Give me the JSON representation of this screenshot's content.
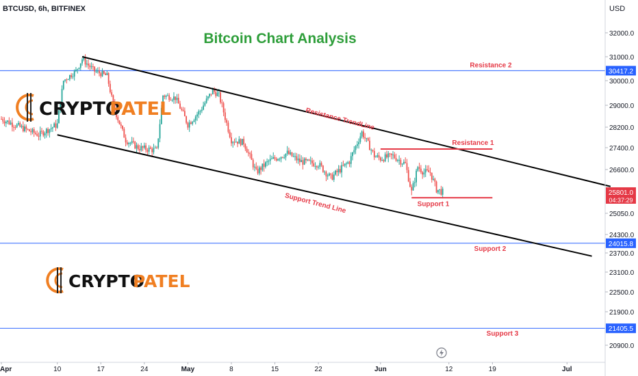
{
  "header": {
    "symbol_line": "BTCUSD, 6h, BITFINEX",
    "currency": "USD"
  },
  "colors": {
    "bullish": "#26a69a",
    "bearish": "#ef5350",
    "title": "#2e9e3a",
    "level_line": "#2962ff",
    "annotation": "#e53946",
    "trendline": "#000000",
    "price_tag": "#e53946",
    "level_tag": "#2962ff",
    "logo_orange": "#f07f22",
    "logo_text": "#111111"
  },
  "chart_data": {
    "type": "candlestick",
    "title": "Bitcoin Chart Analysis",
    "y_axis": {
      "ticks": [
        32000,
        31000,
        30000,
        29000,
        28200,
        27400,
        26600,
        25050,
        24300,
        23700,
        23100,
        22500,
        21900,
        20900
      ],
      "tick_labels": [
        "32000.0",
        "31000.0",
        "30000.0",
        "29000.0",
        "28200.0",
        "27400.0",
        "26600.0",
        "25050.0",
        "24300.0",
        "23700.0",
        "23100.0",
        "22500.0",
        "21900.0",
        "20900.0"
      ]
    },
    "x_axis": {
      "ticks": [
        "2023-04-01",
        "2023-04-10",
        "2023-04-17",
        "2023-04-24",
        "2023-05-01",
        "2023-05-08",
        "2023-05-15",
        "2023-05-22",
        "2023-06-01",
        "2023-06-12",
        "2023-06-19",
        "2023-07-01"
      ],
      "tick_labels": [
        "Apr",
        "10",
        "17",
        "24",
        "May",
        "8",
        "15",
        "22",
        "Jun",
        "12",
        "19",
        "Jul"
      ],
      "bold_labels": [
        "Apr",
        "May",
        "Jun",
        "Jul"
      ]
    },
    "price_path": [
      [
        "2023-04-01",
        28500
      ],
      [
        "2023-04-04",
        28200
      ],
      [
        "2023-04-07",
        27900
      ],
      [
        "2023-04-10",
        28300
      ],
      [
        "2023-04-11",
        30000
      ],
      [
        "2023-04-13",
        30400
      ],
      [
        "2023-04-14",
        30900
      ],
      [
        "2023-04-16",
        30400
      ],
      [
        "2023-04-18",
        30200
      ],
      [
        "2023-04-19",
        29000
      ],
      [
        "2023-04-21",
        27700
      ],
      [
        "2023-04-23",
        27400
      ],
      [
        "2023-04-26",
        27300
      ],
      [
        "2023-04-27",
        29400
      ],
      [
        "2023-04-29",
        29300
      ],
      [
        "2023-05-01",
        28300
      ],
      [
        "2023-05-03",
        28800
      ],
      [
        "2023-05-05",
        29600
      ],
      [
        "2023-05-06",
        29400
      ],
      [
        "2023-05-08",
        27700
      ],
      [
        "2023-05-10",
        27600
      ],
      [
        "2023-05-12",
        26500
      ],
      [
        "2023-05-14",
        26900
      ],
      [
        "2023-05-17",
        27200
      ],
      [
        "2023-05-19",
        26900
      ],
      [
        "2023-05-22",
        26800
      ],
      [
        "2023-05-24",
        26300
      ],
      [
        "2023-05-25",
        26500
      ],
      [
        "2023-05-27",
        26900
      ],
      [
        "2023-05-29",
        28000
      ],
      [
        "2023-05-31",
        27100
      ],
      [
        "2023-06-01",
        27000
      ],
      [
        "2023-06-03",
        27100
      ],
      [
        "2023-06-05",
        26800
      ],
      [
        "2023-06-06",
        25800
      ],
      [
        "2023-06-07",
        26700
      ],
      [
        "2023-06-08",
        26500
      ],
      [
        "2023-06-09",
        26500
      ],
      [
        "2023-06-10",
        25900
      ],
      [
        "2023-06-11",
        25800
      ]
    ],
    "last_price": {
      "value": 25801.0,
      "label": "25801.0",
      "countdown": "04:37:29"
    },
    "horizontal_levels": [
      {
        "name": "Resistance 2",
        "value": 30417.2,
        "label": "30417.2"
      },
      {
        "name": "Support 2",
        "value": 24015.8,
        "label": "24015.8"
      },
      {
        "name": "Support 3",
        "value": 21405.5,
        "label": "21405.5"
      }
    ],
    "short_levels": [
      {
        "name": "Resistance 1",
        "value": 27350,
        "start": "2023-06-01",
        "end": "2023-06-19"
      },
      {
        "name": "Support 1",
        "value": 25600,
        "start": "2023-06-06",
        "end": "2023-06-19"
      }
    ],
    "trendlines": [
      {
        "name": "Resistance TrendLine",
        "points": [
          [
            "2023-04-14",
            31000
          ],
          [
            "2023-07-08",
            26000
          ]
        ]
      },
      {
        "name": "Support Trend Line",
        "points": [
          [
            "2023-04-10",
            27900
          ],
          [
            "2023-07-05",
            23600
          ]
        ]
      }
    ]
  },
  "logos": {
    "word_a": "CRYPTO",
    "word_b": "PATEL"
  },
  "icons": {
    "lightning": "lightning-icon"
  }
}
